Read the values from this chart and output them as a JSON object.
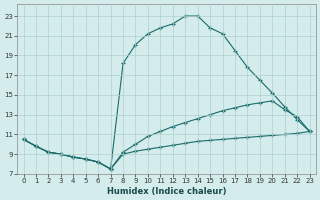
{
  "xlabel": "Humidex (Indice chaleur)",
  "bg_color": "#d4ecec",
  "grid_color": "#b0d0d0",
  "line_color": "#1a6b6b",
  "xlim": [
    -0.5,
    23.5
  ],
  "ylim": [
    7,
    24.2
  ],
  "xticks": [
    0,
    1,
    2,
    3,
    4,
    5,
    6,
    7,
    8,
    9,
    10,
    11,
    12,
    13,
    14,
    15,
    16,
    17,
    18,
    19,
    20,
    21,
    22,
    23
  ],
  "yticks": [
    7,
    9,
    11,
    13,
    15,
    17,
    19,
    21,
    23
  ],
  "line_big": {
    "x": [
      0,
      1,
      2,
      3,
      4,
      5,
      6,
      7,
      8,
      9,
      10,
      11,
      12,
      13,
      14,
      15,
      16,
      17,
      18,
      19,
      20,
      21,
      22,
      23
    ],
    "y": [
      10.5,
      9.8,
      9.2,
      9.0,
      8.7,
      8.5,
      8.2,
      7.5,
      18.2,
      20.1,
      21.2,
      21.8,
      22.2,
      23.0,
      23.0,
      21.8,
      21.2,
      19.5,
      17.8,
      16.5,
      15.2,
      13.8,
      12.5,
      11.3
    ]
  },
  "line_mid": {
    "x": [
      0,
      1,
      2,
      3,
      4,
      5,
      6,
      7,
      8,
      9,
      10,
      11,
      12,
      13,
      14,
      15,
      16,
      17,
      18,
      19,
      20,
      21,
      22,
      23
    ],
    "y": [
      10.5,
      9.8,
      9.2,
      9.0,
      8.7,
      8.5,
      8.2,
      7.5,
      9.2,
      10.0,
      10.8,
      11.3,
      11.8,
      12.2,
      12.6,
      13.0,
      13.4,
      13.7,
      14.0,
      14.2,
      14.4,
      13.5,
      12.8,
      11.3
    ]
  },
  "line_low": {
    "x": [
      0,
      1,
      2,
      3,
      4,
      5,
      6,
      7,
      8,
      9,
      10,
      11,
      12,
      13,
      14,
      15,
      16,
      17,
      18,
      19,
      20,
      21,
      22,
      23
    ],
    "y": [
      10.5,
      9.8,
      9.2,
      9.0,
      8.7,
      8.5,
      8.2,
      7.5,
      9.0,
      9.3,
      9.5,
      9.7,
      9.9,
      10.1,
      10.3,
      10.4,
      10.5,
      10.6,
      10.7,
      10.8,
      10.9,
      11.0,
      11.1,
      11.3
    ]
  }
}
